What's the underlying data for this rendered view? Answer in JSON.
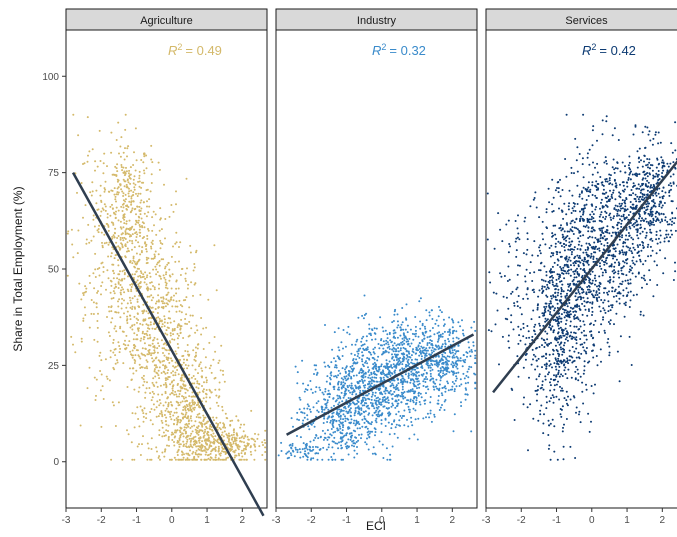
{
  "chart_data": {
    "type": "scatter",
    "xlabel": "ECI",
    "ylabel": "Share in Total Employment (%)",
    "xlim": [
      -3,
      2.7
    ],
    "ylim": [
      -12,
      112
    ],
    "x_ticks": [
      -3,
      -2,
      -1,
      0,
      1,
      2
    ],
    "y_ticks": [
      0,
      25,
      50,
      75,
      100
    ],
    "grid": false,
    "legend": "none",
    "panels": [
      {
        "name": "Agriculture",
        "color": "#D4B96A",
        "r2_label": "R",
        "r2_value": "= 0.49",
        "fit_line": {
          "x": [
            -2.8,
            2.6
          ],
          "y": [
            75,
            -14
          ]
        },
        "clusters": [
          {
            "x_mean": -1.3,
            "x_sd": 0.35,
            "y_mean": 68,
            "y_sd": 8,
            "n": 260
          },
          {
            "x_mean": -1.0,
            "x_sd": 0.7,
            "y_mean": 45,
            "y_sd": 14,
            "n": 520
          },
          {
            "x_mean": -0.3,
            "x_sd": 0.6,
            "y_mean": 30,
            "y_sd": 12,
            "n": 420
          },
          {
            "x_mean": 0.4,
            "x_sd": 0.5,
            "y_mean": 14,
            "y_sd": 8,
            "n": 420
          },
          {
            "x_mean": 1.3,
            "x_sd": 0.6,
            "y_mean": 5,
            "y_sd": 3,
            "n": 420
          },
          {
            "x_mean": -2.2,
            "x_sd": 0.3,
            "y_mean": 55,
            "y_sd": 15,
            "n": 90
          }
        ]
      },
      {
        "name": "Industry",
        "color": "#3A8BCB",
        "r2_label": "R",
        "r2_value": "= 0.32",
        "fit_line": {
          "x": [
            -2.7,
            2.6
          ],
          "y": [
            7,
            33
          ]
        },
        "clusters": [
          {
            "x_mean": -1.2,
            "x_sd": 0.6,
            "y_mean": 12,
            "y_sd": 6,
            "n": 380
          },
          {
            "x_mean": -0.2,
            "x_sd": 0.7,
            "y_mean": 20,
            "y_sd": 7,
            "n": 720
          },
          {
            "x_mean": 1.0,
            "x_sd": 0.6,
            "y_mean": 26,
            "y_sd": 6,
            "n": 520
          },
          {
            "x_mean": 2.0,
            "x_sd": 0.35,
            "y_mean": 27,
            "y_sd": 5,
            "n": 200
          },
          {
            "x_mean": -2.3,
            "x_sd": 0.3,
            "y_mean": 3,
            "y_sd": 1.2,
            "n": 60
          }
        ]
      },
      {
        "name": "Services",
        "color": "#0D3B73",
        "r2_label": "R",
        "r2_value": "= 0.42",
        "fit_line": {
          "x": [
            -2.8,
            2.7
          ],
          "y": [
            18,
            81
          ]
        },
        "clusters": [
          {
            "x_mean": -1.0,
            "x_sd": 0.5,
            "y_mean": 32,
            "y_sd": 12,
            "n": 520
          },
          {
            "x_mean": -0.3,
            "x_sd": 0.6,
            "y_mean": 50,
            "y_sd": 12,
            "n": 620
          },
          {
            "x_mean": 0.7,
            "x_sd": 0.6,
            "y_mean": 60,
            "y_sd": 11,
            "n": 520
          },
          {
            "x_mean": 1.7,
            "x_sd": 0.45,
            "y_mean": 69,
            "y_sd": 7,
            "n": 380
          },
          {
            "x_mean": -2.3,
            "x_sd": 0.35,
            "y_mean": 42,
            "y_sd": 12,
            "n": 80
          }
        ]
      }
    ]
  }
}
